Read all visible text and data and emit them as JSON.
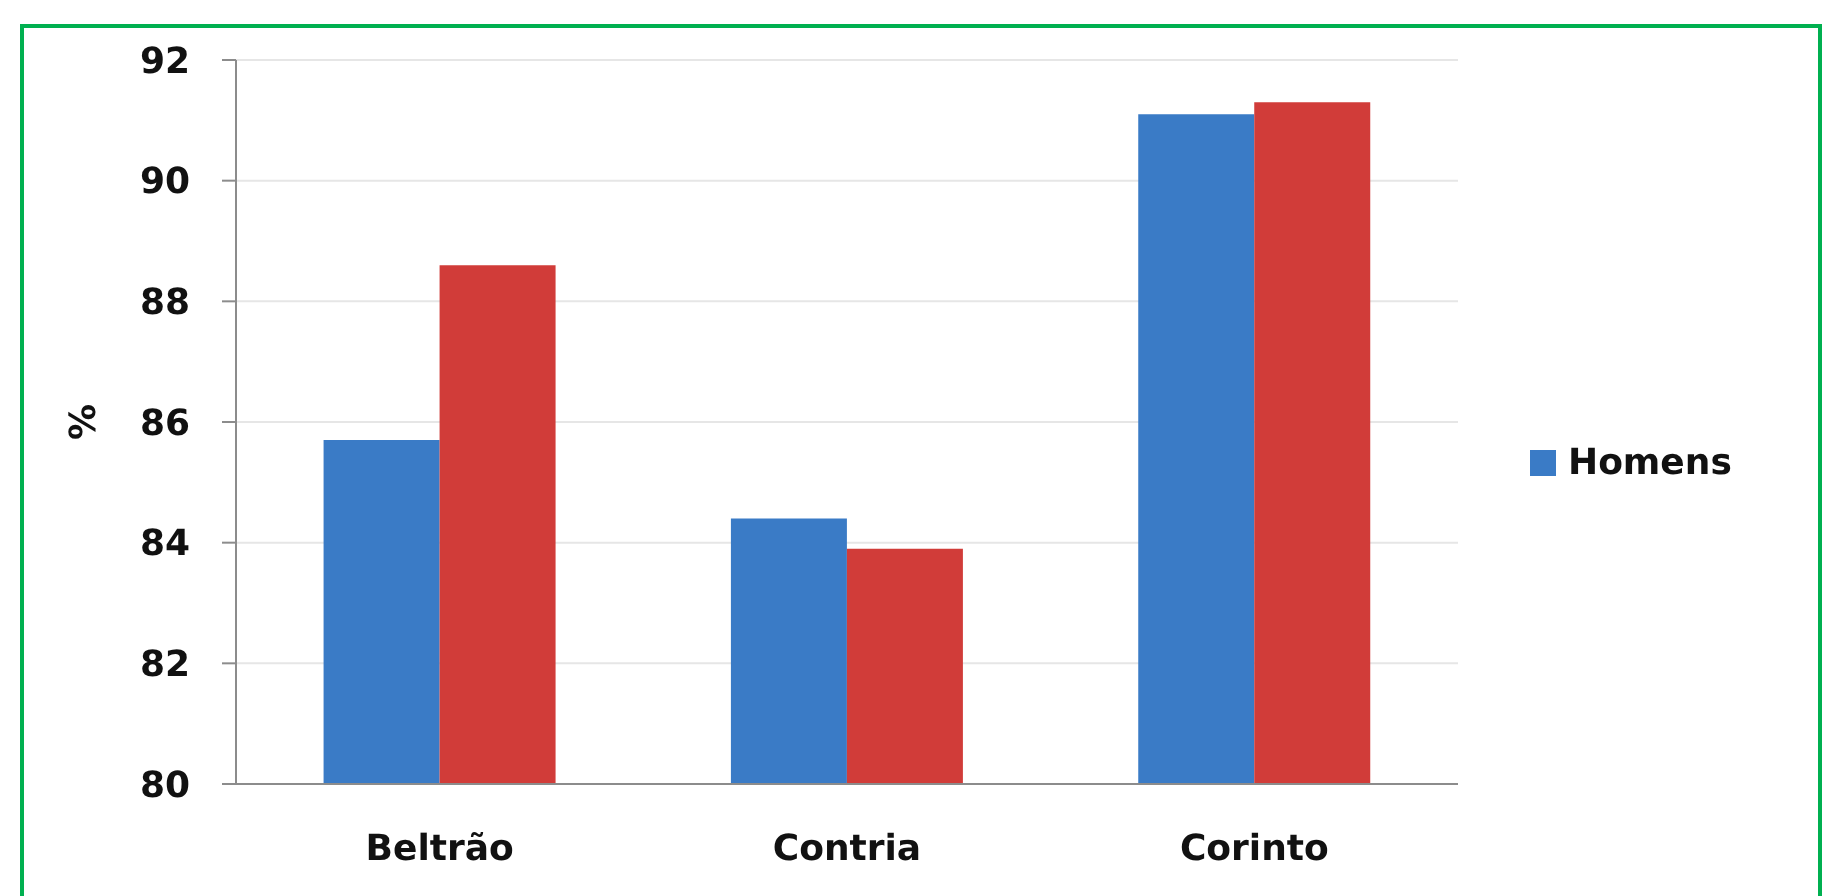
{
  "chart_data": {
    "type": "bar",
    "categories": [
      "Beltrão",
      "Contria",
      "Corinto"
    ],
    "series": [
      {
        "name": "Homens",
        "color": "#3a7bc6",
        "values": [
          85.7,
          84.4,
          91.1
        ]
      },
      {
        "color": "#d13c39",
        "values": [
          88.6,
          83.9,
          91.3
        ]
      }
    ],
    "ylabel": "%",
    "ylim": [
      80,
      92
    ],
    "yticks": [
      80,
      82,
      84,
      86,
      88,
      90,
      92
    ],
    "grid": "y",
    "legend": "right"
  }
}
